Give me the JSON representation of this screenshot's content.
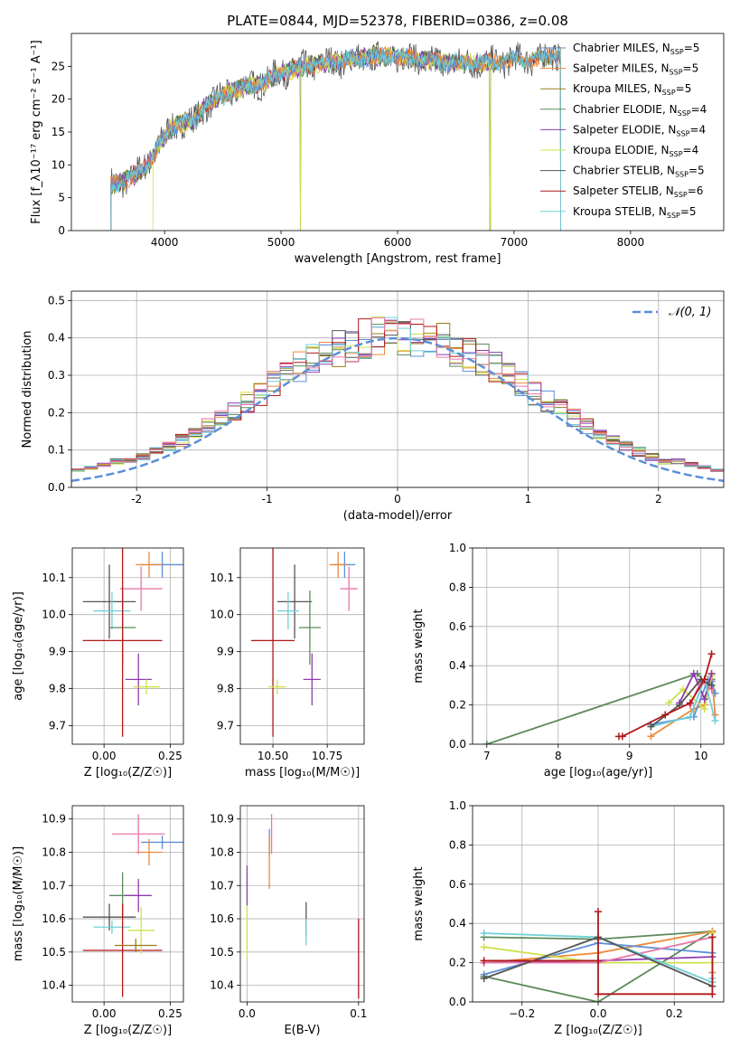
{
  "title": "PLATE=0844, MJD=52378, FIBERID=0386, z=0.08",
  "colors": {
    "chabrier_miles": "#5b8fd8",
    "salpeter_miles": "#ee8a3a",
    "kroupa_miles": "#9a7b1a",
    "chabrier_elodie": "#5b8a5b",
    "salpeter_elodie": "#8e3bb0",
    "kroupa_elodie": "#cfe04a",
    "chabrier_stelib": "#555555",
    "salpeter_stelib": "#b01818",
    "kroupa_stelib": "#6dd0d8",
    "pink": "#e878a8",
    "norm": "#5b8fd8"
  },
  "chart_data": [
    {
      "id": "spectrum",
      "type": "line",
      "xlabel": "wavelength [Angstrom, rest frame]",
      "ylabel": "Flux [f_λ10⁻¹⁷ erg cm⁻² s⁻¹ A⁻¹]",
      "xlim": [
        3200,
        8800
      ],
      "ylim": [
        0,
        30
      ],
      "xticks": [
        4000,
        5000,
        6000,
        7000,
        8000
      ],
      "yticks": [
        0,
        5,
        10,
        15,
        20,
        25
      ],
      "legend_position": "right",
      "series": [
        {
          "name": "Chabrier MILES, N_SSP=5",
          "key": "chabrier_miles"
        },
        {
          "name": "Salpeter MILES, N_SSP=5",
          "key": "salpeter_miles"
        },
        {
          "name": "Kroupa MILES, N_SSP=5",
          "key": "kroupa_miles"
        },
        {
          "name": "Chabrier ELODIE, N_SSP=4",
          "key": "chabrier_elodie"
        },
        {
          "name": "Salpeter ELODIE, N_SSP=4",
          "key": "salpeter_elodie"
        },
        {
          "name": "Kroupa ELODIE, N_SSP=4",
          "key": "kroupa_elodie"
        },
        {
          "name": "Chabrier STELIB, N_SSP=5",
          "key": "chabrier_stelib"
        },
        {
          "name": "Salpeter STELIB, N_SSP=6",
          "key": "salpeter_stelib"
        },
        {
          "name": "Kroupa STELIB, N_SSP=5",
          "key": "kroupa_stelib"
        }
      ],
      "continuum": {
        "x": [
          3550,
          3650,
          3750,
          3850,
          3950,
          4050,
          4150,
          4250,
          4350,
          4450,
          4550,
          4700,
          4850,
          5000,
          5200,
          5400,
          5600,
          5800,
          6000,
          6200,
          6400,
          6600,
          6800,
          7000,
          7200,
          7400
        ],
        "y": [
          7,
          7.5,
          8.5,
          10,
          13,
          15.5,
          16.5,
          16.5,
          19,
          20,
          21,
          22,
          22.5,
          24,
          25,
          25.5,
          26,
          26.5,
          26.5,
          26,
          25.5,
          25.5,
          25.5,
          26,
          26,
          27
        ]
      },
      "ranges": [
        {
          "key": "chabrier_miles",
          "x": [
            3540,
            7400
          ]
        },
        {
          "key": "salpeter_miles",
          "x": [
            3540,
            7400
          ]
        },
        {
          "key": "kroupa_miles",
          "x": [
            3540,
            7400
          ]
        },
        {
          "key": "chabrier_elodie",
          "x": [
            3540,
            6800
          ]
        },
        {
          "key": "salpeter_elodie",
          "x": [
            3540,
            6800
          ]
        },
        {
          "key": "kroupa_elodie",
          "x": [
            3900,
            6800
          ]
        },
        {
          "key": "chabrier_stelib",
          "x": [
            3540,
            7400
          ]
        },
        {
          "key": "salpeter_stelib",
          "x": [
            3540,
            7400
          ]
        },
        {
          "key": "kroupa_stelib",
          "x": [
            3540,
            7400
          ]
        }
      ],
      "dips": [
        5165,
        6790
      ]
    },
    {
      "id": "residuals",
      "type": "area",
      "xlabel": "(data-model)/error",
      "ylabel": "Normed distribution",
      "xlim": [
        -2.5,
        2.5
      ],
      "ylim": [
        0,
        0.525
      ],
      "xticks": [
        -2,
        -1,
        0,
        1,
        2
      ],
      "yticks": [
        0,
        0.1,
        0.2,
        0.3,
        0.4,
        0.5
      ],
      "grid": true,
      "legend_position": "top-right",
      "legend": "𝒩(0, 1)",
      "bin_width": 0.1,
      "bins_start": -2.5
    },
    {
      "id": "z_age",
      "type": "scatter",
      "xlabel": "Z [log₁₀(Z/Z☉)]",
      "ylabel": "age  [log₁₀(age/yr)]",
      "xlim": [
        -0.12,
        0.3
      ],
      "ylim": [
        9.65,
        10.18
      ],
      "xticks": [
        0.0,
        0.25
      ],
      "xticklabels": [
        "0.00",
        "0.25"
      ],
      "yticks": [
        9.7,
        9.8,
        9.9,
        10.0,
        10.1
      ],
      "grid": true,
      "points": [
        {
          "key": "chabrier_miles",
          "x": 0.22,
          "y": 10.135,
          "xerr": 0.08,
          "yerr": 0.035
        },
        {
          "key": "salpeter_miles",
          "x": 0.17,
          "y": 10.135,
          "xerr": 0.05,
          "yerr": 0.035
        },
        {
          "key": "pink",
          "x": 0.14,
          "y": 10.07,
          "xerr": 0.08,
          "yerr": 0.06
        },
        {
          "key": "chabrier_stelib",
          "x": 0.02,
          "y": 10.035,
          "xerr": 0.1,
          "yerr": 0.1
        },
        {
          "key": "kroupa_stelib",
          "x": 0.03,
          "y": 10.01,
          "xerr": 0.07,
          "yerr": 0.05
        },
        {
          "key": "chabrier_elodie",
          "x": 0.07,
          "y": 9.965,
          "xerr": 0.05,
          "yerr": 0.1
        },
        {
          "key": "salpeter_stelib",
          "x": 0.07,
          "y": 9.93,
          "xerr": 0.15,
          "yerr": 0.26
        },
        {
          "key": "salpeter_elodie",
          "x": 0.13,
          "y": 9.825,
          "xerr": 0.05,
          "yerr": 0.07
        },
        {
          "key": "kroupa_elodie",
          "x": 0.16,
          "y": 9.805,
          "xerr": 0.05,
          "yerr": 0.02
        }
      ]
    },
    {
      "id": "mass_age",
      "type": "scatter",
      "xlabel": "mass [log₁₀(M/M☉)]",
      "xlim": [
        10.35,
        10.92
      ],
      "ylim": [
        9.65,
        10.18
      ],
      "xticks": [
        10.5,
        10.75
      ],
      "xticklabels": [
        "10.50",
        "10.75"
      ],
      "yticks": [
        9.7,
        9.8,
        9.9,
        10.0,
        10.1
      ],
      "grid": true,
      "points": [
        {
          "key": "chabrier_miles",
          "x": 10.83,
          "y": 10.135,
          "xerr": 0.05,
          "yerr": 0.035
        },
        {
          "key": "salpeter_miles",
          "x": 10.8,
          "y": 10.135,
          "xerr": 0.04,
          "yerr": 0.035
        },
        {
          "key": "pink",
          "x": 10.85,
          "y": 10.07,
          "xerr": 0.04,
          "yerr": 0.06
        },
        {
          "key": "chabrier_stelib",
          "x": 10.6,
          "y": 10.035,
          "xerr": 0.08,
          "yerr": 0.1
        },
        {
          "key": "kroupa_stelib",
          "x": 10.57,
          "y": 10.01,
          "xerr": 0.05,
          "yerr": 0.05
        },
        {
          "key": "chabrier_elodie",
          "x": 10.67,
          "y": 9.965,
          "xerr": 0.05,
          "yerr": 0.1
        },
        {
          "key": "salpeter_stelib",
          "x": 10.5,
          "y": 9.93,
          "xerr": 0.1,
          "yerr": 0.26
        },
        {
          "key": "salpeter_elodie",
          "x": 10.68,
          "y": 9.825,
          "xerr": 0.04,
          "yerr": 0.07
        },
        {
          "key": "kroupa_elodie",
          "x": 10.52,
          "y": 9.805,
          "xerr": 0.04,
          "yerr": 0.02
        }
      ]
    },
    {
      "id": "age_weight",
      "type": "line",
      "xlabel": "age  [log₁₀(age/yr)]",
      "ylabel": "mass weight",
      "xlim": [
        6.8,
        10.32
      ],
      "ylim": [
        0,
        1.0
      ],
      "xticks": [
        7,
        8,
        9,
        10
      ],
      "yticks": [
        0,
        0.2,
        0.4,
        0.6,
        0.8,
        1.0
      ],
      "grid": true,
      "series": [
        {
          "key": "chabrier_elodie",
          "x": [
            7.0,
            9.95,
            10.1,
            10.15
          ],
          "y": [
            0.0,
            0.36,
            0.3,
            0.33
          ]
        },
        {
          "key": "salpeter_miles",
          "x": [
            9.3,
            9.9,
            10.05,
            10.15,
            10.2
          ],
          "y": [
            0.04,
            0.18,
            0.2,
            0.36,
            0.15
          ]
        },
        {
          "key": "chabrier_miles",
          "x": [
            9.3,
            9.9,
            10.1,
            10.15,
            10.2
          ],
          "y": [
            0.1,
            0.14,
            0.33,
            0.32,
            0.26
          ]
        },
        {
          "key": "kroupa_elodie",
          "x": [
            9.55,
            9.75,
            10.05,
            10.15
          ],
          "y": [
            0.21,
            0.28,
            0.18,
            0.35
          ]
        },
        {
          "key": "salpeter_elodie",
          "x": [
            9.7,
            9.9,
            10.05,
            10.15
          ],
          "y": [
            0.21,
            0.36,
            0.23,
            0.36
          ]
        },
        {
          "key": "pink",
          "x": [
            9.85,
            10.0,
            10.15
          ],
          "y": [
            0.2,
            0.32,
            0.28
          ]
        },
        {
          "key": "kroupa_stelib",
          "x": [
            9.3,
            9.85,
            10.05,
            10.2
          ],
          "y": [
            0.09,
            0.14,
            0.33,
            0.12
          ]
        },
        {
          "key": "chabrier_stelib",
          "x": [
            9.3,
            9.7,
            10.0,
            10.15
          ],
          "y": [
            0.09,
            0.2,
            0.33,
            0.3
          ]
        },
        {
          "key": "salpeter_stelib",
          "x": [
            8.85,
            8.9,
            9.5,
            9.85,
            10.05,
            10.15
          ],
          "y": [
            0.04,
            0.04,
            0.15,
            0.21,
            0.33,
            0.46
          ]
        }
      ]
    },
    {
      "id": "z_mass",
      "type": "scatter",
      "xlabel": "Z [log₁₀(Z/Z☉)]",
      "ylabel": "mass [log₁₀(M/M☉)]",
      "xlim": [
        -0.12,
        0.3
      ],
      "ylim": [
        10.35,
        10.94
      ],
      "xticks": [
        0.0,
        0.25
      ],
      "xticklabels": [
        "0.00",
        "0.25"
      ],
      "yticks": [
        10.4,
        10.5,
        10.6,
        10.7,
        10.8,
        10.9
      ],
      "grid": true,
      "points": [
        {
          "key": "chabrier_miles",
          "x": 0.22,
          "y": 10.83,
          "xerr": 0.08,
          "yerr": 0.02
        },
        {
          "key": "salpeter_miles",
          "x": 0.17,
          "y": 10.8,
          "xerr": 0.05,
          "yerr": 0.04
        },
        {
          "key": "pink",
          "x": 0.13,
          "y": 10.855,
          "xerr": 0.1,
          "yerr": 0.06
        },
        {
          "key": "chabrier_stelib",
          "x": 0.02,
          "y": 10.605,
          "xerr": 0.1,
          "yerr": 0.04
        },
        {
          "key": "kroupa_stelib",
          "x": 0.03,
          "y": 10.575,
          "xerr": 0.07,
          "yerr": 0.02
        },
        {
          "key": "chabrier_elodie",
          "x": 0.07,
          "y": 10.67,
          "xerr": 0.05,
          "yerr": 0.07
        },
        {
          "key": "salpeter_stelib",
          "x": 0.07,
          "y": 10.505,
          "xerr": 0.15,
          "yerr": 0.14
        },
        {
          "key": "salpeter_elodie",
          "x": 0.13,
          "y": 10.67,
          "xerr": 0.05,
          "yerr": 0.05
        },
        {
          "key": "kroupa_elodie",
          "x": 0.14,
          "y": 10.565,
          "xerr": 0.05,
          "yerr": 0.07
        },
        {
          "key": "kroupa_miles",
          "x": 0.12,
          "y": 10.52,
          "xerr": 0.08,
          "yerr": 0.02
        }
      ]
    },
    {
      "id": "ebv_mass",
      "type": "scatter",
      "xlabel": "E(B-V)",
      "xlim": [
        -0.006,
        0.105
      ],
      "ylim": [
        10.35,
        10.94
      ],
      "xticks": [
        0.0,
        0.1
      ],
      "xticklabels": [
        "0.0",
        "0.1"
      ],
      "yticks": [
        10.4,
        10.5,
        10.6,
        10.7,
        10.8,
        10.9
      ],
      "grid": true,
      "points": [
        {
          "key": "chabrier_miles",
          "x": 0.02,
          "y": 10.83,
          "yerr": 0.04
        },
        {
          "key": "pink",
          "x": 0.022,
          "y": 10.855,
          "yerr": 0.06
        },
        {
          "key": "salpeter_miles",
          "x": 0.02,
          "y": 10.77,
          "yerr": 0.08
        },
        {
          "key": "salpeter_elodie",
          "x": 0.0,
          "y": 10.7,
          "yerr": 0.06
        },
        {
          "key": "kroupa_elodie",
          "x": 0.0,
          "y": 10.56,
          "yerr": 0.08
        },
        {
          "key": "chabrier_stelib",
          "x": 0.053,
          "y": 10.6,
          "yerr": 0.05
        },
        {
          "key": "kroupa_stelib",
          "x": 0.053,
          "y": 10.56,
          "yerr": 0.04
        },
        {
          "key": "salpeter_stelib",
          "x": 0.1,
          "y": 10.48,
          "yerr": 0.12
        }
      ]
    },
    {
      "id": "z_weight",
      "type": "line",
      "xlabel": "Z [log₁₀(Z/Z☉)]",
      "ylabel": "mass weight",
      "xlim": [
        -0.33,
        0.33
      ],
      "ylim": [
        0,
        1.0
      ],
      "xticks": [
        -0.2,
        0.0,
        0.2
      ],
      "xticklabels": [
        "−0.2",
        "0.0",
        "0.2"
      ],
      "yticks": [
        0,
        0.2,
        0.4,
        0.6,
        0.8,
        1.0
      ],
      "grid": true,
      "series": [
        {
          "key": "chabrier_elodie",
          "x": [
            -0.3,
            0.0,
            0.3,
            0.3,
            0.0,
            -0.3
          ],
          "y": [
            0.33,
            0.32,
            0.36,
            0.36,
            0.0,
            0.13
          ]
        },
        {
          "key": "salpeter_miles",
          "x": [
            -0.3,
            0.0,
            0.3,
            0.3
          ],
          "y": [
            0.2,
            0.25,
            0.36,
            0.15
          ]
        },
        {
          "key": "chabrier_miles",
          "x": [
            -0.3,
            0.0,
            0.3,
            0.3
          ],
          "y": [
            0.14,
            0.3,
            0.25,
            0.1
          ]
        },
        {
          "key": "kroupa_elodie",
          "x": [
            -0.3,
            0.0,
            0.3,
            0.3
          ],
          "y": [
            0.28,
            0.2,
            0.2,
            0.35
          ]
        },
        {
          "key": "salpeter_elodie",
          "x": [
            -0.3,
            0.0,
            0.3
          ],
          "y": [
            0.2,
            0.21,
            0.23
          ]
        },
        {
          "key": "pink",
          "x": [
            -0.3,
            0.0,
            0.3
          ],
          "y": [
            0.2,
            0.2,
            0.33
          ]
        },
        {
          "key": "kroupa_stelib",
          "x": [
            -0.3,
            0.0,
            0.3,
            0.3
          ],
          "y": [
            0.35,
            0.33,
            0.1,
            0.12
          ]
        },
        {
          "key": "chabrier_stelib",
          "x": [
            -0.3,
            0.0,
            0.3
          ],
          "y": [
            0.12,
            0.33,
            0.08
          ]
        },
        {
          "key": "salpeter_stelib",
          "x": [
            -0.3,
            0.0,
            0.0,
            0.0,
            0.3,
            0.3
          ],
          "y": [
            0.21,
            0.21,
            0.46,
            0.04,
            0.04,
            0.33
          ]
        }
      ]
    }
  ]
}
